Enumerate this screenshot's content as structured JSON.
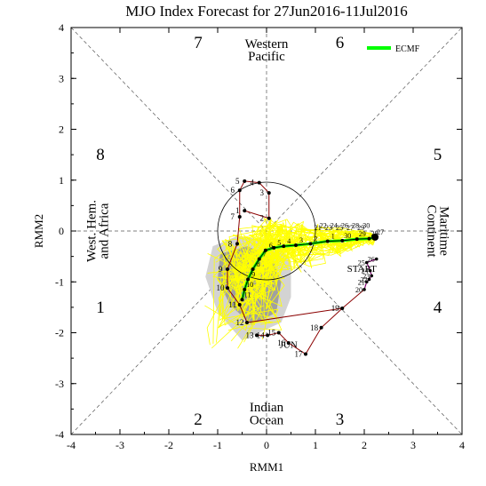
{
  "chart_data": {
    "type": "line",
    "title": "MJO Index Forecast for 27Jun2016-11Jul2016",
    "xlabel": "RMM1",
    "ylabel": "RMM2",
    "xlim": [
      -4,
      4
    ],
    "ylim": [
      -4,
      4
    ],
    "xticks": [
      "-4",
      "-3",
      "-2",
      "-1",
      "0",
      "1",
      "2",
      "3",
      "4"
    ],
    "yticks": [
      "-4",
      "-3",
      "-2",
      "-1",
      "0",
      "1",
      "2",
      "3",
      "4"
    ],
    "phase_labels": [
      {
        "text": "1",
        "x": -3.4,
        "y": -1.5
      },
      {
        "text": "2",
        "x": -1.4,
        "y": -3.7
      },
      {
        "text": "3",
        "x": 1.5,
        "y": -3.7
      },
      {
        "text": "4",
        "x": 3.5,
        "y": -1.5
      },
      {
        "text": "5",
        "x": 3.5,
        "y": 1.5
      },
      {
        "text": "6",
        "x": 1.5,
        "y": 3.7
      },
      {
        "text": "7",
        "x": -1.4,
        "y": 3.7
      },
      {
        "text": "8",
        "x": -3.4,
        "y": 1.5
      }
    ],
    "region_labels": {
      "top": [
        "Western",
        "Pacific"
      ],
      "bottom": [
        "Indian",
        "Ocean"
      ],
      "left": [
        "West. Hem.",
        "and Africa"
      ],
      "right": [
        "Maritime",
        "Continent"
      ]
    },
    "legend": {
      "label": "ECMF",
      "color": "#00ff00",
      "position": "top-right"
    },
    "grid": false,
    "unit_circle_radius": 1,
    "colors": {
      "observed": "#8b0000",
      "observed_recent": "#800080",
      "ensemble": "#ffff00",
      "ensemble_mean": "#00ff00",
      "spread_dark": "#a0a0a0",
      "spread_light": "#d3d3d3",
      "dashed": "#555555"
    },
    "observed_label_jun": "JUN",
    "forecast_start_label": "START",
    "observed_jun": [
      {
        "d": "13",
        "x": -0.2,
        "y": -2.05
      },
      {
        "d": "14",
        "x": 0.02,
        "y": -2.05
      },
      {
        "d": "15",
        "x": 0.25,
        "y": -2.0
      },
      {
        "d": "16",
        "x": 0.45,
        "y": -2.2
      },
      {
        "d": "17",
        "x": 0.8,
        "y": -2.42
      },
      {
        "d": "18",
        "x": 1.12,
        "y": -1.9
      },
      {
        "d": "19",
        "x": 1.55,
        "y": -1.52
      }
    ],
    "observed_jul": [
      {
        "d": "1",
        "x": -0.45,
        "y": 0.4
      },
      {
        "d": "2",
        "x": 0.05,
        "y": 0.25
      },
      {
        "d": "3",
        "x": 0.05,
        "y": 0.75
      },
      {
        "d": "4",
        "x": -0.15,
        "y": 0.95
      },
      {
        "d": "5",
        "x": -0.45,
        "y": 0.98
      },
      {
        "d": "6",
        "x": -0.55,
        "y": 0.8
      },
      {
        "d": "7",
        "x": -0.55,
        "y": 0.28
      },
      {
        "d": "8",
        "x": -0.6,
        "y": -0.25
      },
      {
        "d": "9",
        "x": -0.8,
        "y": -0.75
      },
      {
        "d": "10",
        "x": -0.8,
        "y": -1.12
      },
      {
        "d": "11",
        "x": -0.55,
        "y": -1.45
      },
      {
        "d": "12",
        "x": -0.4,
        "y": -1.8
      }
    ],
    "observed_recent": [
      {
        "d": "20",
        "x": 2.0,
        "y": -1.15
      },
      {
        "d": "21",
        "x": 2.05,
        "y": -1.0
      },
      {
        "d": "22",
        "x": 2.1,
        "y": -0.95
      },
      {
        "d": "23",
        "x": 2.15,
        "y": -0.88
      },
      {
        "d": "24",
        "x": 2.12,
        "y": -0.78
      },
      {
        "d": "25",
        "x": 2.05,
        "y": -0.62
      },
      {
        "d": "26",
        "x": 2.25,
        "y": -0.55
      }
    ],
    "forecast_mean": [
      {
        "d": "27",
        "x": 2.22,
        "y": -0.12
      },
      {
        "d": "28",
        "x": 2.1,
        "y": -0.15
      },
      {
        "d": "29",
        "x": 1.85,
        "y": -0.16
      },
      {
        "d": "30",
        "x": 1.55,
        "y": -0.19
      },
      {
        "d": "1",
        "x": 1.25,
        "y": -0.2
      },
      {
        "d": "2",
        "x": 0.9,
        "y": -0.25
      },
      {
        "d": "3",
        "x": 0.6,
        "y": -0.28
      },
      {
        "d": "4",
        "x": 0.35,
        "y": -0.3
      },
      {
        "d": "5",
        "x": 0.15,
        "y": -0.33
      },
      {
        "d": "6",
        "x": -0.02,
        "y": -0.38
      },
      {
        "d": "7",
        "x": -0.15,
        "y": -0.55
      },
      {
        "d": "8",
        "x": -0.28,
        "y": -0.75
      },
      {
        "d": "9",
        "x": -0.38,
        "y": -0.95
      },
      {
        "d": "10",
        "x": -0.45,
        "y": -1.15
      },
      {
        "d": "11",
        "x": -0.5,
        "y": -1.35
      }
    ],
    "day_labels_mid": [
      "21",
      "22",
      "23",
      "24",
      "25",
      "26",
      "27",
      "28",
      "29",
      "30"
    ]
  }
}
